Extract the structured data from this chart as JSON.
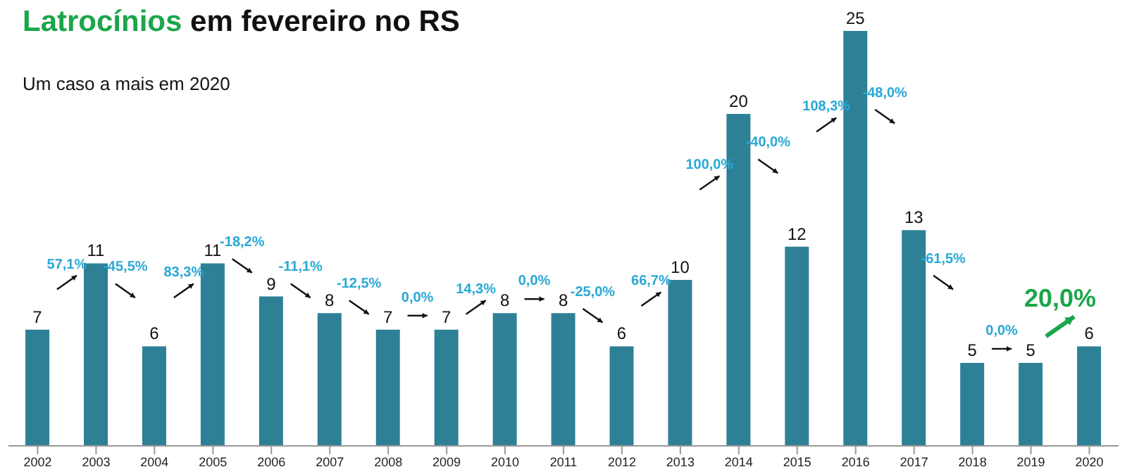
{
  "chart_data": {
    "type": "bar",
    "title": "Latrocínios em fevereiro no RS",
    "subtitle": "Um caso a mais em 2020",
    "categories": [
      "2002",
      "2003",
      "2004",
      "2005",
      "2006",
      "2007",
      "2008",
      "2009",
      "2010",
      "2011",
      "2012",
      "2013",
      "2014",
      "2015",
      "2016",
      "2017",
      "2018",
      "2019",
      "2020"
    ],
    "values": [
      7,
      11,
      6,
      11,
      9,
      8,
      7,
      7,
      8,
      8,
      6,
      10,
      20,
      12,
      25,
      13,
      5,
      5,
      6
    ],
    "color": "#2e8096",
    "data_labels": true,
    "annotations": [
      "57,1%",
      "-45,5%",
      "83,3%",
      "-18,2%",
      "-11,1%",
      "-12,5%",
      "0,0%",
      "14,3%",
      "0,0%",
      "-25,0%",
      "66,7%",
      "100,0%",
      "-40,0%",
      "108,3%",
      "-48,0%",
      "-61,5%",
      "0,0%",
      "20,0%"
    ]
  }
}
